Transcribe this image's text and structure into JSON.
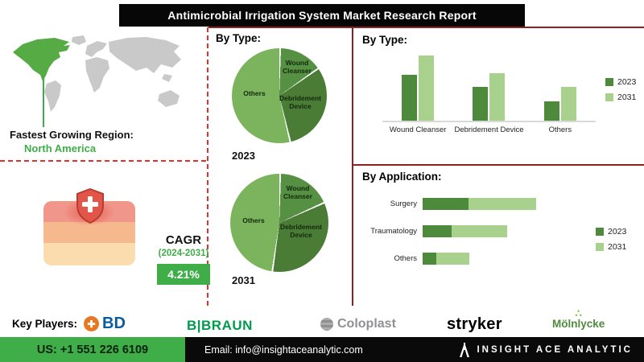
{
  "title": "Antimicrobial Irrigation System Market Research Report",
  "region": {
    "label": "Fastest Growing Region:",
    "value": "North America"
  },
  "cagr": {
    "label": "CAGR",
    "period": "(2024-2031)",
    "value": "4.21%"
  },
  "pie_section": {
    "heading": "By Type:"
  },
  "chart_data": [
    {
      "type": "pie",
      "year": "2023",
      "labels": [
        "Wound Cleanser",
        "Debridement Device",
        "Others"
      ],
      "values": [
        15,
        31,
        54
      ]
    },
    {
      "type": "pie",
      "year": "2031",
      "labels": [
        "Wound Cleanser",
        "Debridement Device",
        "Others"
      ],
      "values": [
        18,
        34,
        48
      ]
    },
    {
      "type": "bar",
      "title": "By Type:",
      "categories": [
        "Wound Cleanser",
        "Debridement Device",
        "Others"
      ],
      "ylim": [
        0,
        100
      ],
      "legend_position": "right",
      "series": [
        {
          "name": "2023",
          "values": [
            62,
            46,
            26
          ]
        },
        {
          "name": "2031",
          "values": [
            88,
            64,
            46
          ]
        }
      ]
    },
    {
      "type": "bar",
      "orientation": "horizontal",
      "stacked": true,
      "title": "By Application:",
      "categories": [
        "Surgery",
        "Traumatology",
        "Others"
      ],
      "xlim": [
        0,
        100
      ],
      "legend_position": "right",
      "series": [
        {
          "name": "2023",
          "values": [
            38,
            24,
            11
          ]
        },
        {
          "name": "2031",
          "values": [
            56,
            46,
            27
          ]
        }
      ]
    }
  ],
  "key_players": {
    "label": "Key Players:",
    "players": [
      "BD",
      "B|BRAUN",
      "Coloplast",
      "stryker",
      "Mölnlycke"
    ]
  },
  "footer": {
    "phone": "US: +1 551 226 6109",
    "email": "Email: info@insightaceanalytic.com",
    "brand": "INSIGHT ACE ANALYTIC"
  },
  "colors": {
    "green_dark": "#4e8a3c",
    "green_light": "#a9d18e",
    "pie_wound": "#569143",
    "pie_debride": "#4a7c36",
    "pie_others": "#7cb45e",
    "accent_green": "#3fae49",
    "maroon": "#8e2020",
    "dashed_red": "#e03131",
    "black": "#0a0a0a"
  }
}
